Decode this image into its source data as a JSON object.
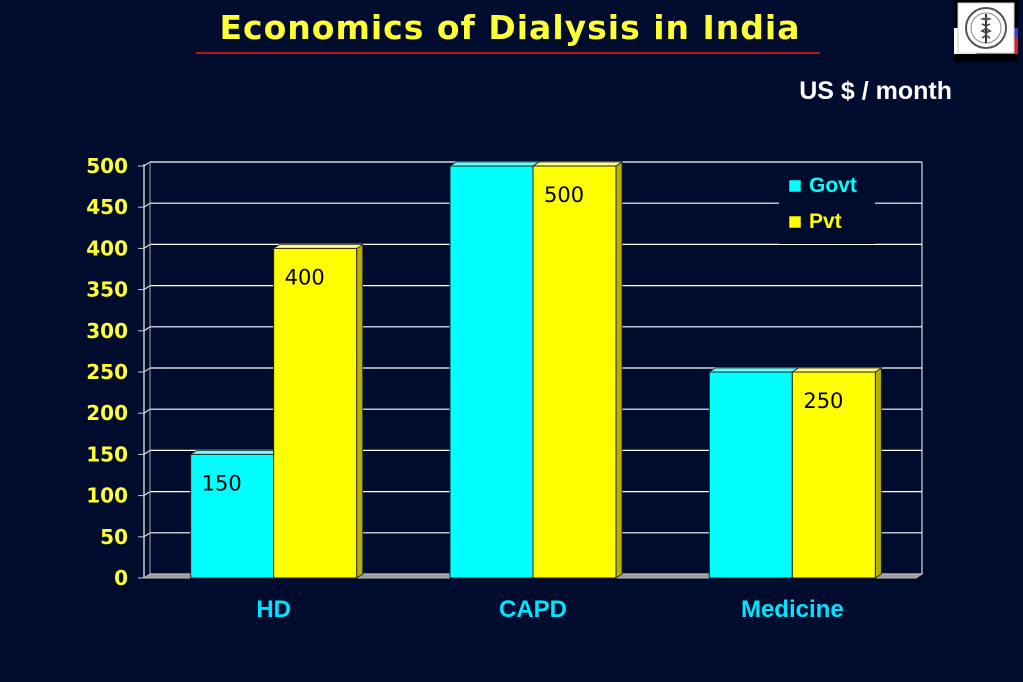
{
  "slide": {
    "title": "Economics of Dialysis in India",
    "unit_label": "US $ / month",
    "logo_icon": "caduceus-emblem-icon"
  },
  "colors": {
    "background": "#000c2e",
    "title": "#ffff33",
    "govt": "#00ffff",
    "pvt": "#ffff00",
    "category_labels": "#00e5ff",
    "tick_labels": "#ffff33",
    "gridlines": "#ffffff"
  },
  "chart_data": {
    "type": "bar",
    "categories": [
      "HD",
      "CAPD",
      "Medicine"
    ],
    "series": [
      {
        "name": "Govt",
        "values": [
          150,
          500,
          250
        ]
      },
      {
        "name": "Pvt",
        "values": [
          400,
          500,
          250
        ]
      }
    ],
    "data_labels": [
      {
        "category": "HD",
        "series": "Govt",
        "text": "150"
      },
      {
        "category": "HD",
        "series": "Pvt",
        "text": "400"
      },
      {
        "category": "CAPD",
        "series": "Pvt",
        "text": "500"
      },
      {
        "category": "Medicine",
        "series": "Pvt",
        "text": "250"
      }
    ],
    "title": "Economics of Dialysis in India",
    "ylabel": "US $ / month",
    "ylim": [
      0,
      500
    ],
    "yticks": [
      0,
      50,
      100,
      150,
      200,
      250,
      300,
      350,
      400,
      450,
      500
    ],
    "grid": true,
    "legend_position": "top-right",
    "style": "3d"
  }
}
